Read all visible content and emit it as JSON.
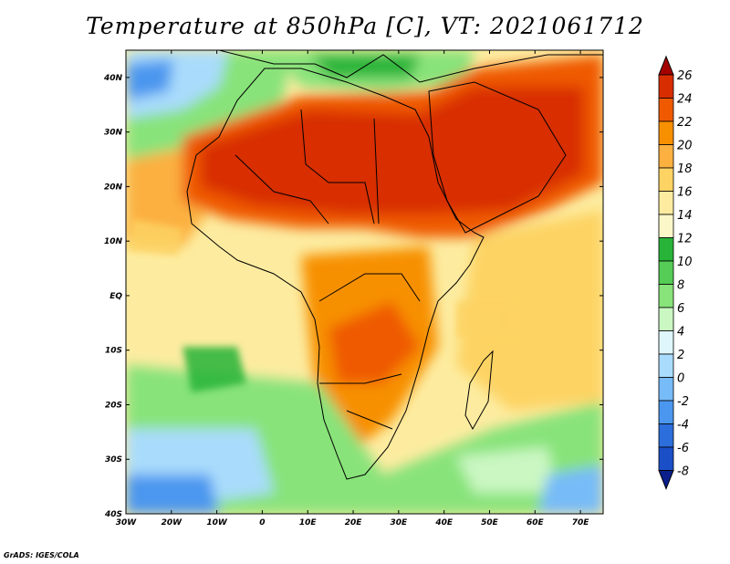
{
  "title": "Temperature at 850hPa [C], VT: 2021061712",
  "credit": "GrADS: IGES/COLA",
  "map": {
    "region": "Africa and Arabian Peninsula",
    "lon_range": [
      -30,
      75
    ],
    "lat_range": [
      -40,
      45
    ],
    "lon_ticks": [
      "30W",
      "20W",
      "10W",
      "0",
      "10E",
      "20E",
      "30E",
      "40E",
      "50E",
      "60E",
      "70E"
    ],
    "lat_ticks": [
      "40N",
      "30N",
      "20N",
      "10N",
      "EQ",
      "10S",
      "20S",
      "30S",
      "40S"
    ]
  },
  "colorbar": {
    "labels": [
      "26",
      "24",
      "22",
      "20",
      "18",
      "16",
      "14",
      "12",
      "10",
      "8",
      "6",
      "4",
      "2",
      "0",
      "-2",
      "-4",
      "-6",
      "-8"
    ],
    "colors": [
      "#a50000",
      "#d82d00",
      "#ef5a00",
      "#f79000",
      "#fbb040",
      "#fdd364",
      "#fdeca0",
      "#fbf7c8",
      "#28b438",
      "#55cc55",
      "#88e37a",
      "#caf7c2",
      "#e0f6fd",
      "#a9dcfc",
      "#77bbf8",
      "#4b97ef",
      "#2c6edb",
      "#1a4fc8",
      "#0a1f8c"
    ]
  }
}
